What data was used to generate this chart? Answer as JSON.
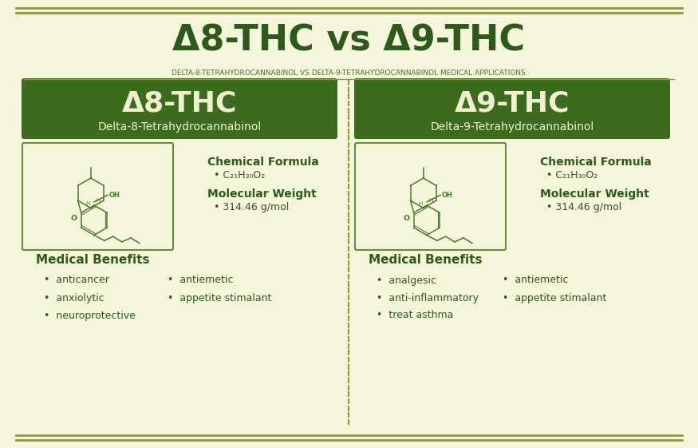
{
  "bg_color": "#f5f5dc",
  "border_color": "#8a9a3a",
  "dark_green": "#2d5a1b",
  "medium_green": "#4a7a2a",
  "title": "Δ8-THC vs Δ9-THC",
  "subtitle": "DELTA-8-TETRAHYDROCANNABINOL VS DELTA-9-TETRAHYDROCANNABINOL MEDICAL APPLICATIONS",
  "left_title": "Δ8-THC",
  "left_subtitle": "Delta-8-Tetrahydrocannabinol",
  "right_title": "Δ9-THC",
  "right_subtitle": "Delta-9-Tetrahydrocannabinol",
  "chem_formula_label": "Chemical Formula",
  "chem_formula_value": "C₂₁H₃₀O₂",
  "mol_weight_label": "Molecular Weight",
  "mol_weight_value": "314.46 g/mol",
  "left_benefits_title": "Medical Benefits",
  "left_benefits_col1": [
    "anticancer",
    "anxiolytic",
    "neuroprotective"
  ],
  "left_benefits_col2": [
    "antiemetic",
    "appetite stimalant"
  ],
  "right_benefits_title": "Medical Benefits",
  "right_benefits_col1": [
    "analgesic",
    "anti-inflammatory",
    "treat asthma"
  ],
  "right_benefits_col2": [
    "antiemetic",
    "appetite stimalant"
  ],
  "header_bg": "#3d6b1e",
  "box_border": "#6a8a3a",
  "text_light": "#f0f0d0"
}
